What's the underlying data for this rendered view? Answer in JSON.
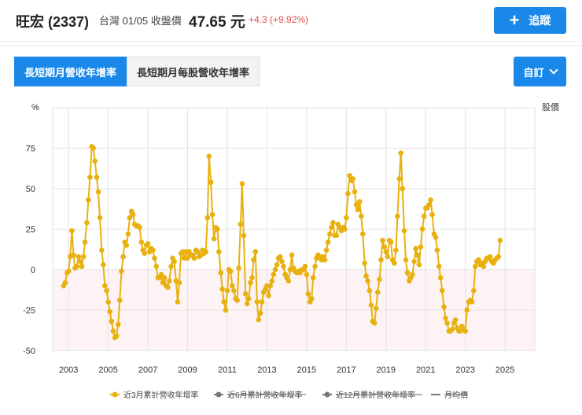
{
  "header": {
    "stock_name": "旺宏 (2337)",
    "meta": "台灣 01/05 收盤價",
    "price": "47.65 元",
    "change": "+4.3 (+9.92%)",
    "track_label": "追蹤"
  },
  "tabs": [
    {
      "label": "長短期月營收年增率",
      "active": true
    },
    {
      "label": "長短期月每股營收年增率",
      "active": false
    }
  ],
  "custom_label": "自訂",
  "colors": {
    "accent": "#1a88e8",
    "series": "#e8b10f",
    "negative_zone": "#fdf3f5",
    "up": "#e44c4c"
  },
  "chart_data": {
    "type": "line",
    "ylabel": "%",
    "y2label": "股價",
    "ylim": [
      -50,
      100
    ],
    "yticks": [
      -50,
      -25,
      0,
      25,
      50,
      75
    ],
    "xlim": [
      2002.2,
      2026.5
    ],
    "xticks": [
      2003,
      2005,
      2007,
      2009,
      2011,
      2013,
      2015,
      2017,
      2019,
      2021,
      2023,
      2025
    ],
    "grid": true,
    "legend_position": "bottom",
    "legend": [
      {
        "name": "近3月累計營收年增率",
        "active": true,
        "color": "#e8b10f"
      },
      {
        "name": "近6月累計營收年增率",
        "active": false,
        "color": "#777777"
      },
      {
        "name": "近12月累計營收年增率",
        "active": false,
        "color": "#777777"
      },
      {
        "name": "月均價",
        "active": false,
        "color": "#777777"
      }
    ],
    "series": [
      {
        "name": "近3月累計營收年增率",
        "points": [
          [
            2002.75,
            -10
          ],
          [
            2002.83,
            -8
          ],
          [
            2002.92,
            -2
          ],
          [
            2003.0,
            -1
          ],
          [
            2003.08,
            8
          ],
          [
            2003.17,
            24
          ],
          [
            2003.25,
            9
          ],
          [
            2003.33,
            1
          ],
          [
            2003.42,
            2
          ],
          [
            2003.5,
            8
          ],
          [
            2003.58,
            5
          ],
          [
            2003.67,
            2
          ],
          [
            2003.75,
            8
          ],
          [
            2003.83,
            17
          ],
          [
            2003.92,
            29
          ],
          [
            2004.0,
            43
          ],
          [
            2004.08,
            57
          ],
          [
            2004.17,
            76
          ],
          [
            2004.25,
            75
          ],
          [
            2004.33,
            67
          ],
          [
            2004.42,
            57
          ],
          [
            2004.5,
            48
          ],
          [
            2004.58,
            32
          ],
          [
            2004.67,
            12
          ],
          [
            2004.75,
            3
          ],
          [
            2004.83,
            -10
          ],
          [
            2004.92,
            -13
          ],
          [
            2005.0,
            -20
          ],
          [
            2005.08,
            -26
          ],
          [
            2005.17,
            -32
          ],
          [
            2005.25,
            -38
          ],
          [
            2005.33,
            -42
          ],
          [
            2005.42,
            -41
          ],
          [
            2005.5,
            -34
          ],
          [
            2005.58,
            -19
          ],
          [
            2005.67,
            -1
          ],
          [
            2005.75,
            8
          ],
          [
            2005.83,
            17
          ],
          [
            2005.92,
            15
          ],
          [
            2006.0,
            22
          ],
          [
            2006.08,
            32
          ],
          [
            2006.17,
            36
          ],
          [
            2006.25,
            34
          ],
          [
            2006.33,
            28
          ],
          [
            2006.42,
            27
          ],
          [
            2006.5,
            27
          ],
          [
            2006.58,
            26
          ],
          [
            2006.67,
            17
          ],
          [
            2006.75,
            12
          ],
          [
            2006.83,
            10
          ],
          [
            2006.92,
            15
          ],
          [
            2007.0,
            16
          ],
          [
            2007.08,
            11
          ],
          [
            2007.17,
            13
          ],
          [
            2007.25,
            12
          ],
          [
            2007.33,
            7
          ],
          [
            2007.42,
            2
          ],
          [
            2007.5,
            -5
          ],
          [
            2007.58,
            -5
          ],
          [
            2007.67,
            -3
          ],
          [
            2007.75,
            -8
          ],
          [
            2007.83,
            -5
          ],
          [
            2007.92,
            -10
          ],
          [
            2008.0,
            -11
          ],
          [
            2008.08,
            -7
          ],
          [
            2008.17,
            2
          ],
          [
            2008.25,
            7
          ],
          [
            2008.33,
            5
          ],
          [
            2008.42,
            -7
          ],
          [
            2008.5,
            -20
          ],
          [
            2008.58,
            -8
          ],
          [
            2008.67,
            10
          ],
          [
            2008.75,
            11
          ],
          [
            2008.83,
            7
          ],
          [
            2008.92,
            11
          ],
          [
            2009.0,
            7
          ],
          [
            2009.08,
            11
          ],
          [
            2009.17,
            9
          ],
          [
            2009.25,
            9
          ],
          [
            2009.33,
            7
          ],
          [
            2009.42,
            12
          ],
          [
            2009.5,
            11
          ],
          [
            2009.58,
            8
          ],
          [
            2009.67,
            9
          ],
          [
            2009.75,
            12
          ],
          [
            2009.83,
            10
          ],
          [
            2009.92,
            11
          ],
          [
            2010.0,
            32
          ],
          [
            2010.08,
            70
          ],
          [
            2010.17,
            54
          ],
          [
            2010.25,
            34
          ],
          [
            2010.33,
            19
          ],
          [
            2010.42,
            26
          ],
          [
            2010.5,
            25
          ],
          [
            2010.58,
            11
          ],
          [
            2010.67,
            -2
          ],
          [
            2010.75,
            -12
          ],
          [
            2010.83,
            -20
          ],
          [
            2010.92,
            -25
          ],
          [
            2011.0,
            -13
          ],
          [
            2011.08,
            0
          ],
          [
            2011.17,
            -1
          ],
          [
            2011.25,
            -10
          ],
          [
            2011.33,
            -13
          ],
          [
            2011.42,
            -18
          ],
          [
            2011.5,
            -19
          ],
          [
            2011.58,
            1
          ],
          [
            2011.67,
            28
          ],
          [
            2011.75,
            53
          ],
          [
            2011.83,
            21
          ],
          [
            2011.92,
            -15
          ],
          [
            2012.0,
            -21
          ],
          [
            2012.08,
            -18
          ],
          [
            2012.17,
            -8
          ],
          [
            2012.25,
            -5
          ],
          [
            2012.33,
            6
          ],
          [
            2012.42,
            11
          ],
          [
            2012.5,
            -20
          ],
          [
            2012.58,
            -31
          ],
          [
            2012.67,
            -27
          ],
          [
            2012.75,
            -20
          ],
          [
            2012.83,
            -14
          ],
          [
            2012.92,
            -12
          ],
          [
            2013.0,
            -10
          ],
          [
            2013.08,
            -16
          ],
          [
            2013.17,
            -10
          ],
          [
            2013.25,
            -7
          ],
          [
            2013.33,
            -3
          ],
          [
            2013.42,
            0
          ],
          [
            2013.5,
            3
          ],
          [
            2013.58,
            7
          ],
          [
            2013.67,
            8
          ],
          [
            2013.75,
            5
          ],
          [
            2013.83,
            2
          ],
          [
            2013.92,
            -3
          ],
          [
            2014.0,
            -5
          ],
          [
            2014.08,
            -7
          ],
          [
            2014.17,
            0
          ],
          [
            2014.25,
            9
          ],
          [
            2014.33,
            1
          ],
          [
            2014.42,
            -1
          ],
          [
            2014.5,
            -2
          ],
          [
            2014.58,
            -1
          ],
          [
            2014.67,
            -2
          ],
          [
            2014.75,
            0
          ],
          [
            2014.83,
            0
          ],
          [
            2014.92,
            2
          ],
          [
            2015.0,
            -3
          ],
          [
            2015.08,
            -15
          ],
          [
            2015.17,
            -20
          ],
          [
            2015.25,
            -18
          ],
          [
            2015.33,
            -5
          ],
          [
            2015.42,
            2
          ],
          [
            2015.5,
            7
          ],
          [
            2015.58,
            9
          ],
          [
            2015.67,
            8
          ],
          [
            2015.75,
            6
          ],
          [
            2015.83,
            8
          ],
          [
            2015.92,
            6
          ],
          [
            2016.0,
            12
          ],
          [
            2016.08,
            17
          ],
          [
            2016.17,
            22
          ],
          [
            2016.25,
            26
          ],
          [
            2016.33,
            29
          ],
          [
            2016.42,
            21
          ],
          [
            2016.5,
            21
          ],
          [
            2016.58,
            28
          ],
          [
            2016.67,
            26
          ],
          [
            2016.75,
            24
          ],
          [
            2016.83,
            26
          ],
          [
            2016.92,
            25
          ],
          [
            2017.0,
            32
          ],
          [
            2017.08,
            47
          ],
          [
            2017.17,
            58
          ],
          [
            2017.25,
            55
          ],
          [
            2017.33,
            56
          ],
          [
            2017.42,
            48
          ],
          [
            2017.5,
            40
          ],
          [
            2017.58,
            37
          ],
          [
            2017.67,
            42
          ],
          [
            2017.75,
            33
          ],
          [
            2017.83,
            22
          ],
          [
            2017.92,
            4
          ],
          [
            2018.0,
            -4
          ],
          [
            2018.08,
            -7
          ],
          [
            2018.17,
            -13
          ],
          [
            2018.25,
            -22
          ],
          [
            2018.33,
            -32
          ],
          [
            2018.42,
            -33
          ],
          [
            2018.5,
            -24
          ],
          [
            2018.58,
            -14
          ],
          [
            2018.67,
            -6
          ],
          [
            2018.75,
            6
          ],
          [
            2018.83,
            18
          ],
          [
            2018.92,
            14
          ],
          [
            2019.0,
            11
          ],
          [
            2019.08,
            8
          ],
          [
            2019.17,
            18
          ],
          [
            2019.25,
            17
          ],
          [
            2019.33,
            6
          ],
          [
            2019.42,
            4
          ],
          [
            2019.5,
            12
          ],
          [
            2019.58,
            33
          ],
          [
            2019.67,
            56
          ],
          [
            2019.75,
            72
          ],
          [
            2019.83,
            50
          ],
          [
            2019.92,
            24
          ],
          [
            2020.0,
            6
          ],
          [
            2020.08,
            -2
          ],
          [
            2020.17,
            -7
          ],
          [
            2020.25,
            -5
          ],
          [
            2020.33,
            -3
          ],
          [
            2020.42,
            5
          ],
          [
            2020.5,
            13
          ],
          [
            2020.58,
            9
          ],
          [
            2020.67,
            3
          ],
          [
            2020.75,
            14
          ],
          [
            2020.83,
            25
          ],
          [
            2020.92,
            33
          ],
          [
            2021.0,
            38
          ],
          [
            2021.08,
            38
          ],
          [
            2021.17,
            40
          ],
          [
            2021.25,
            43
          ],
          [
            2021.33,
            34
          ],
          [
            2021.42,
            22
          ],
          [
            2021.5,
            20
          ],
          [
            2021.58,
            12
          ],
          [
            2021.67,
            2
          ],
          [
            2021.75,
            -5
          ],
          [
            2021.83,
            -13
          ],
          [
            2021.92,
            -23
          ],
          [
            2022.0,
            -30
          ],
          [
            2022.08,
            -33
          ],
          [
            2022.17,
            -38
          ],
          [
            2022.25,
            -38
          ],
          [
            2022.33,
            -37
          ],
          [
            2022.42,
            -33
          ],
          [
            2022.5,
            -31
          ],
          [
            2022.58,
            -36
          ],
          [
            2022.67,
            -38
          ],
          [
            2022.75,
            -38
          ],
          [
            2022.83,
            -35
          ],
          [
            2022.92,
            -37
          ],
          [
            2023.0,
            -38
          ],
          [
            2023.08,
            -25
          ],
          [
            2023.17,
            -20
          ],
          [
            2023.25,
            -19
          ],
          [
            2023.33,
            -20
          ],
          [
            2023.42,
            -13
          ],
          [
            2023.5,
            2
          ],
          [
            2023.58,
            5
          ],
          [
            2023.67,
            6
          ],
          [
            2023.75,
            3
          ],
          [
            2023.83,
            4
          ],
          [
            2023.92,
            2
          ],
          [
            2024.0,
            5
          ],
          [
            2024.08,
            7
          ],
          [
            2024.17,
            7
          ],
          [
            2024.25,
            8
          ],
          [
            2024.33,
            5
          ],
          [
            2024.42,
            4
          ],
          [
            2024.5,
            6
          ],
          [
            2024.58,
            7
          ],
          [
            2024.67,
            8
          ],
          [
            2024.75,
            18
          ]
        ]
      }
    ]
  }
}
